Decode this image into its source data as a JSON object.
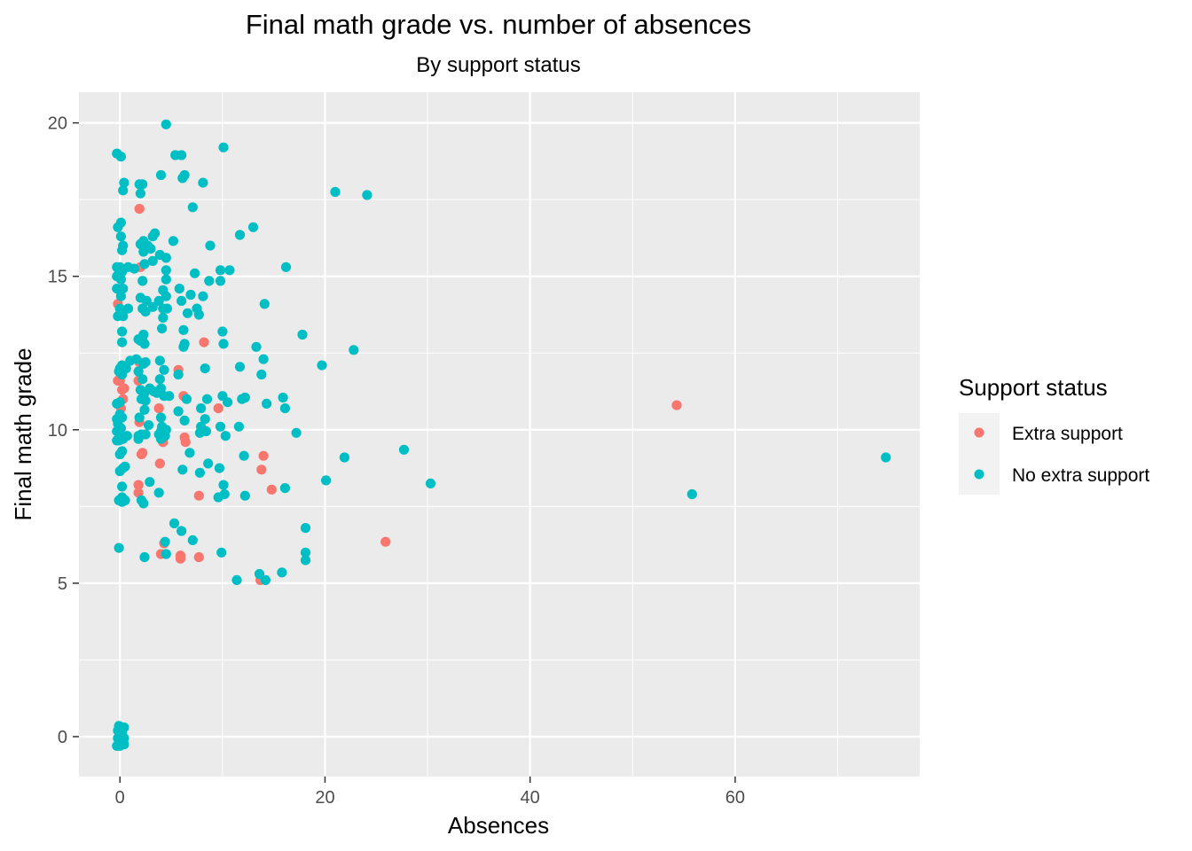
{
  "chart_data": {
    "type": "scatter",
    "title": "Final math grade vs. number of absences",
    "subtitle": "By support status",
    "xlabel": "Absences",
    "ylabel": "Final math grade",
    "xlim": [
      -4,
      78
    ],
    "ylim": [
      -1.3,
      21
    ],
    "x_ticks": [
      0,
      20,
      40,
      60
    ],
    "y_ticks": [
      0,
      5,
      10,
      15,
      20
    ],
    "x_tick_labels": [
      "0",
      "20",
      "40",
      "60"
    ],
    "y_tick_labels": [
      "0",
      "5",
      "10",
      "15",
      "20"
    ],
    "grid": true,
    "legend": {
      "title": "Support status",
      "position": "right"
    },
    "series": [
      {
        "name": "Extra support",
        "color": "#F8766D",
        "points": [
          [
            54.3,
            10.8
          ],
          [
            25.9,
            6.35
          ],
          [
            14.8,
            8.05
          ],
          [
            14.0,
            9.15
          ],
          [
            13.8,
            8.7
          ],
          [
            13.7,
            5.1
          ],
          [
            9.6,
            10.7
          ],
          [
            8.2,
            12.85
          ],
          [
            7.7,
            7.85
          ],
          [
            7.7,
            5.85
          ],
          [
            6.3,
            9.75
          ],
          [
            6.2,
            11.1
          ],
          [
            6.4,
            9.6
          ],
          [
            5.7,
            11.95
          ],
          [
            5.9,
            5.9
          ],
          [
            5.9,
            5.8
          ],
          [
            4.3,
            6.3
          ],
          [
            4.0,
            5.95
          ],
          [
            4.2,
            9.6
          ],
          [
            3.8,
            10.7
          ],
          [
            3.9,
            8.9
          ],
          [
            2.1,
            9.2
          ],
          [
            2.2,
            9.25
          ],
          [
            1.9,
            10.25
          ],
          [
            1.8,
            7.95
          ],
          [
            1.8,
            8.2
          ],
          [
            2.0,
            15.3
          ],
          [
            1.9,
            17.2
          ],
          [
            1.8,
            11.6
          ],
          [
            0.3,
            11.0
          ],
          [
            0.2,
            11.3
          ],
          [
            0.0,
            11.6
          ],
          [
            -0.2,
            11.6
          ],
          [
            -0.2,
            14.1
          ],
          [
            0.1,
            10.7
          ],
          [
            0.4,
            11.35
          ],
          [
            1.9,
            12.2
          ],
          [
            2.2,
            13.0
          ]
        ]
      },
      {
        "name": "No extra support",
        "color": "#00BFC4",
        "points": [
          [
            74.7,
            9.1
          ],
          [
            55.8,
            7.9
          ],
          [
            30.3,
            8.25
          ],
          [
            27.7,
            9.35
          ],
          [
            24.1,
            17.65
          ],
          [
            21.0,
            17.75
          ],
          [
            22.8,
            12.6
          ],
          [
            21.9,
            9.1
          ],
          [
            20.1,
            8.35
          ],
          [
            19.7,
            12.1
          ],
          [
            18.1,
            6.8
          ],
          [
            18.1,
            6.0
          ],
          [
            18.1,
            5.75
          ],
          [
            17.8,
            13.1
          ],
          [
            17.2,
            9.9
          ],
          [
            16.2,
            15.3
          ],
          [
            16.1,
            10.7
          ],
          [
            15.9,
            11.05
          ],
          [
            16.1,
            8.1
          ],
          [
            15.8,
            5.35
          ],
          [
            14.3,
            10.85
          ],
          [
            14.1,
            14.1
          ],
          [
            14.0,
            12.3
          ],
          [
            13.8,
            11.8
          ],
          [
            13.6,
            5.3
          ],
          [
            14.2,
            5.1
          ],
          [
            13.3,
            12.7
          ],
          [
            13.0,
            16.6
          ],
          [
            12.2,
            11.05
          ],
          [
            11.9,
            11.0
          ],
          [
            12.1,
            9.15
          ],
          [
            12.2,
            7.85
          ],
          [
            11.7,
            16.35
          ],
          [
            11.7,
            12.05
          ],
          [
            11.6,
            10.1
          ],
          [
            11.4,
            5.1
          ],
          [
            10.7,
            15.2
          ],
          [
            10.5,
            10.9
          ],
          [
            10.3,
            9.8
          ],
          [
            10.2,
            7.9
          ],
          [
            10.1,
            12.8
          ],
          [
            10.0,
            11.1
          ],
          [
            10.0,
            13.2
          ],
          [
            10.1,
            8.2
          ],
          [
            10.1,
            19.2
          ],
          [
            9.9,
            6.0
          ],
          [
            9.8,
            15.2
          ],
          [
            9.8,
            14.85
          ],
          [
            9.8,
            10.1
          ],
          [
            9.7,
            8.75
          ],
          [
            9.6,
            7.8
          ],
          [
            8.8,
            16.0
          ],
          [
            8.7,
            14.85
          ],
          [
            8.6,
            8.9
          ],
          [
            8.5,
            11.0
          ],
          [
            8.4,
            9.95
          ],
          [
            8.3,
            10.35
          ],
          [
            8.3,
            12.0
          ],
          [
            8.1,
            18.05
          ],
          [
            8.1,
            14.35
          ],
          [
            7.9,
            10.7
          ],
          [
            7.9,
            10.1
          ],
          [
            7.8,
            9.9
          ],
          [
            7.8,
            8.6
          ],
          [
            7.7,
            13.75
          ],
          [
            7.5,
            13.95
          ],
          [
            7.3,
            15.1
          ],
          [
            7.1,
            17.25
          ],
          [
            7.1,
            6.4
          ],
          [
            6.9,
            14.4
          ],
          [
            6.8,
            9.25
          ],
          [
            6.6,
            13.8
          ],
          [
            6.5,
            11.0
          ],
          [
            6.3,
            10.3
          ],
          [
            6.3,
            12.8
          ],
          [
            6.2,
            12.7
          ],
          [
            6.2,
            13.25
          ],
          [
            6.1,
            8.7
          ],
          [
            6.0,
            14.2
          ],
          [
            6.3,
            18.3
          ],
          [
            6.1,
            18.2
          ],
          [
            6.0,
            18.95
          ],
          [
            6.0,
            6.7
          ],
          [
            5.8,
            14.6
          ],
          [
            5.7,
            11.8
          ],
          [
            5.7,
            10.6
          ],
          [
            5.4,
            18.95
          ],
          [
            5.2,
            16.15
          ],
          [
            5.3,
            6.95
          ],
          [
            4.8,
            11.1
          ],
          [
            4.6,
            13.95
          ],
          [
            4.5,
            14.9
          ],
          [
            4.5,
            15.6
          ],
          [
            4.5,
            15.2
          ],
          [
            4.5,
            14.35
          ],
          [
            4.5,
            10.0
          ],
          [
            4.4,
            9.8
          ],
          [
            4.4,
            6.35
          ],
          [
            4.5,
            5.95
          ],
          [
            4.3,
            11.95
          ],
          [
            4.3,
            11.1
          ],
          [
            4.2,
            13.65
          ],
          [
            4.2,
            13.95
          ],
          [
            4.1,
            13.3
          ],
          [
            4.2,
            14.55
          ],
          [
            4.1,
            10.1
          ],
          [
            4.0,
            10.4
          ],
          [
            4.0,
            9.95
          ],
          [
            4.0,
            9.7
          ],
          [
            4.0,
            11.35
          ],
          [
            3.9,
            15.7
          ],
          [
            4.0,
            18.3
          ],
          [
            4.5,
            19.95
          ],
          [
            3.8,
            14.2
          ],
          [
            3.9,
            12.25
          ],
          [
            3.9,
            11.65
          ],
          [
            3.8,
            9.85
          ],
          [
            3.8,
            7.95
          ],
          [
            3.6,
            11.2
          ],
          [
            3.4,
            16.4
          ],
          [
            3.2,
            16.3
          ],
          [
            3.3,
            11.25
          ],
          [
            3.2,
            14.0
          ],
          [
            3.2,
            15.5
          ],
          [
            3.0,
            15.9
          ],
          [
            2.9,
            11.35
          ],
          [
            2.8,
            10.15
          ],
          [
            2.9,
            8.3
          ],
          [
            2.7,
            16.0
          ],
          [
            2.6,
            14.2
          ],
          [
            2.5,
            13.85
          ],
          [
            2.5,
            12.2
          ],
          [
            2.5,
            10.95
          ],
          [
            2.5,
            9.85
          ],
          [
            2.4,
            15.4
          ],
          [
            2.4,
            12.8
          ],
          [
            2.4,
            11.2
          ],
          [
            2.4,
            10.65
          ],
          [
            2.3,
            16.15
          ],
          [
            2.3,
            15.8
          ],
          [
            2.3,
            13.1
          ],
          [
            2.3,
            12.15
          ],
          [
            2.2,
            18.0
          ],
          [
            2.2,
            16.0
          ],
          [
            2.2,
            14.85
          ],
          [
            2.2,
            13.95
          ],
          [
            2.2,
            11.65
          ],
          [
            2.1,
            11.0
          ],
          [
            2.1,
            9.85
          ],
          [
            2.1,
            7.7
          ],
          [
            2.3,
            7.6
          ],
          [
            2.4,
            5.85
          ],
          [
            2.0,
            17.7
          ],
          [
            2.0,
            16.05
          ],
          [
            2.0,
            14.3
          ],
          [
            2.0,
            12.9
          ],
          [
            2.0,
            11.3
          ],
          [
            1.9,
            10.4
          ],
          [
            1.8,
            12.95
          ],
          [
            1.8,
            9.8
          ],
          [
            1.8,
            9.7
          ],
          [
            1.6,
            12.3
          ],
          [
            1.9,
            18.0
          ],
          [
            1.8,
            11.9
          ],
          [
            1.4,
            15.25
          ],
          [
            1.0,
            12.25
          ],
          [
            0.8,
            15.3
          ],
          [
            0.8,
            13.95
          ],
          [
            0.7,
            9.8
          ],
          [
            0.6,
            12.0
          ],
          [
            0.4,
            18.05
          ],
          [
            0.3,
            17.8
          ],
          [
            0.3,
            16.0
          ],
          [
            0.3,
            14.6
          ],
          [
            0.3,
            13.7
          ],
          [
            0.3,
            8.75
          ],
          [
            0.2,
            15.85
          ],
          [
            0.2,
            15.15
          ],
          [
            0.2,
            13.2
          ],
          [
            0.2,
            12.85
          ],
          [
            0.2,
            12.1
          ],
          [
            0.2,
            11.8
          ],
          [
            0.2,
            10.4
          ],
          [
            0.2,
            9.75
          ],
          [
            0.2,
            9.3
          ],
          [
            0.2,
            8.15
          ],
          [
            0.2,
            7.8
          ],
          [
            0.2,
            7.65
          ],
          [
            0.1,
            18.9
          ],
          [
            0.1,
            16.75
          ],
          [
            0.1,
            16.3
          ],
          [
            0.1,
            14.9
          ],
          [
            0.1,
            14.35
          ],
          [
            0.1,
            10.05
          ],
          [
            0.0,
            15.3
          ],
          [
            0.0,
            13.95
          ],
          [
            0.0,
            12.0
          ],
          [
            0.0,
            10.9
          ],
          [
            0.0,
            10.5
          ],
          [
            0.0,
            9.2
          ],
          [
            0.0,
            8.65
          ],
          [
            -0.1,
            15.1
          ],
          [
            -0.1,
            11.9
          ],
          [
            -0.1,
            9.65
          ],
          [
            -0.1,
            6.15
          ],
          [
            -0.2,
            16.6
          ],
          [
            -0.2,
            13.7
          ],
          [
            -0.2,
            10.2
          ],
          [
            -0.3,
            19.0
          ],
          [
            -0.3,
            15.3
          ],
          [
            -0.3,
            15.0
          ],
          [
            -0.3,
            14.6
          ],
          [
            -0.3,
            10.85
          ],
          [
            -0.3,
            10.35
          ],
          [
            -0.3,
            9.95
          ],
          [
            -0.3,
            9.65
          ],
          [
            -0.1,
            7.7
          ],
          [
            0.5,
            7.7
          ],
          [
            0.5,
            8.8
          ],
          [
            0.3,
            9.7
          ],
          [
            -0.1,
            0.35
          ],
          [
            0.1,
            0.3
          ],
          [
            0.4,
            0.3
          ],
          [
            -0.2,
            0.2
          ],
          [
            0.2,
            0.15
          ],
          [
            0.1,
            0.05
          ],
          [
            -0.2,
            -0.05
          ],
          [
            0.4,
            -0.05
          ],
          [
            0.0,
            -0.15
          ],
          [
            -0.1,
            -0.25
          ],
          [
            0.2,
            -0.25
          ],
          [
            0.4,
            -0.25
          ],
          [
            0.0,
            -0.3
          ],
          [
            -0.3,
            -0.3
          ]
        ]
      }
    ]
  }
}
